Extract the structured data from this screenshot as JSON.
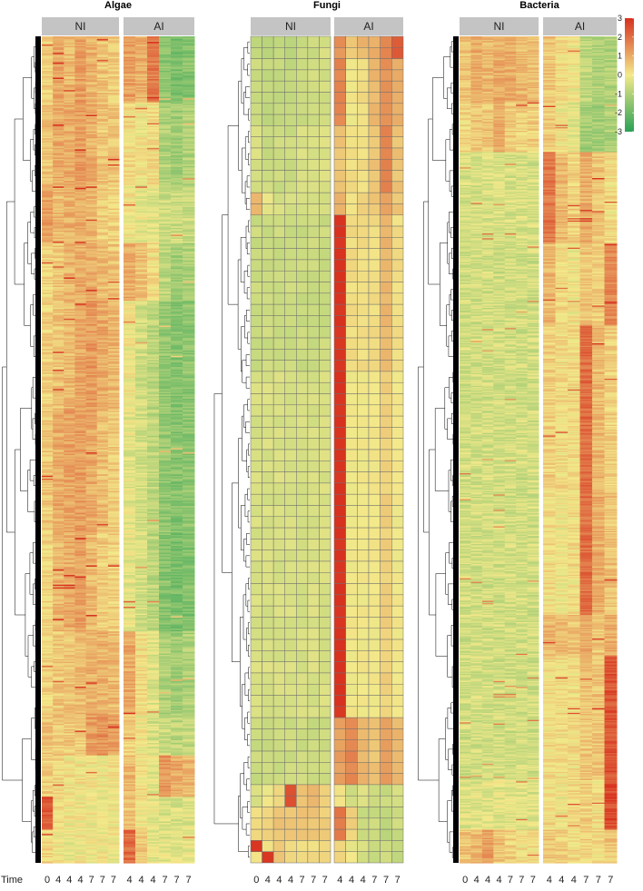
{
  "chart_data": {
    "type": "heatmap",
    "x_axis_label": "Time",
    "color_scale": {
      "min": -3,
      "max": 3,
      "ticks": [
        3,
        2,
        1,
        0,
        -1,
        -2,
        -3
      ],
      "colors": {
        "low": "#2aa155",
        "mid": "#f3e98a",
        "high": "#d7311f"
      }
    },
    "column_groups": [
      "NI",
      "AI"
    ],
    "column_times": {
      "NI": [
        "0",
        "4",
        "4",
        "4",
        "7",
        "7",
        "7"
      ],
      "AI": [
        "4",
        "4",
        "4",
        "7",
        "7",
        "7"
      ]
    },
    "panels": [
      {
        "title": "Algae",
        "dense": true,
        "rows": 600,
        "profile": [
          [
            0.0,
            [
              0.4,
              1.0,
              0.8,
              1.2,
              0.9,
              0.6,
              0.5
            ],
            [
              1.2,
              0.9,
              1.8,
              -1.5,
              -1.8,
              -1.6
            ]
          ],
          [
            0.08,
            [
              0.6,
              1.0,
              1.0,
              1.2,
              0.9,
              0.6,
              0.6
            ],
            [
              0.2,
              0.0,
              0.2,
              -1.0,
              -1.2,
              -1.0
            ]
          ],
          [
            0.18,
            [
              1.2,
              0.8,
              0.9,
              1.0,
              0.8,
              0.5,
              0.4
            ],
            [
              0.0,
              -0.2,
              -0.3,
              -0.6,
              -0.6,
              -0.6
            ]
          ],
          [
            0.25,
            [
              0.3,
              0.6,
              0.8,
              1.0,
              1.0,
              0.7,
              0.6
            ],
            [
              1.0,
              0.6,
              0.2,
              -0.8,
              -1.2,
              -1.0
            ]
          ],
          [
            0.32,
            [
              0.4,
              0.6,
              0.8,
              1.1,
              1.3,
              1.0,
              0.8
            ],
            [
              0.0,
              -0.5,
              -0.8,
              -1.4,
              -1.6,
              -1.5
            ]
          ],
          [
            0.45,
            [
              0.5,
              1.0,
              1.1,
              1.2,
              1.0,
              0.7,
              0.5
            ],
            [
              -0.2,
              -0.5,
              -0.8,
              -1.4,
              -1.6,
              -1.5
            ]
          ],
          [
            0.6,
            [
              0.3,
              0.8,
              1.0,
              1.2,
              0.8,
              0.5,
              0.4
            ],
            [
              -0.2,
              -0.5,
              -0.8,
              -1.6,
              -1.8,
              -1.7
            ]
          ],
          [
            0.72,
            [
              0.3,
              0.5,
              0.6,
              0.7,
              0.9,
              0.9,
              0.8
            ],
            [
              1.0,
              0.2,
              -0.3,
              -1.0,
              -1.2,
              -1.0
            ]
          ],
          [
            0.82,
            [
              0.6,
              0.5,
              0.5,
              0.5,
              1.2,
              1.4,
              1.2
            ],
            [
              0.4,
              0.0,
              -0.4,
              -0.6,
              -0.8,
              -0.7
            ]
          ],
          [
            0.87,
            [
              0.4,
              0.2,
              0.1,
              0.1,
              0.1,
              0.0,
              0.1
            ],
            [
              0.8,
              0.2,
              -0.2,
              1.4,
              1.0,
              0.8
            ]
          ],
          [
            0.92,
            [
              2.4,
              0.1,
              0.0,
              0.0,
              0.0,
              -0.1,
              0.0
            ],
            [
              0.6,
              0.0,
              -0.2,
              -0.4,
              -0.4,
              -0.3
            ]
          ],
          [
            0.96,
            [
              0.3,
              0.0,
              -0.1,
              0.0,
              -0.1,
              0.0,
              0.0
            ],
            [
              2.0,
              0.6,
              -0.2,
              -0.3,
              -0.3,
              -0.2
            ]
          ]
        ]
      },
      {
        "title": "Fungi",
        "dense": false,
        "rows": 74,
        "profile": [
          [
            0.0,
            [
              -0.8,
              -0.8,
              -0.8,
              -0.8,
              -0.6,
              -0.6,
              -0.4
            ],
            [
              1.4,
              0.6,
              0.8,
              1.0,
              1.6,
              2.4
            ]
          ],
          [
            0.02,
            [
              -0.6,
              -0.7,
              -0.7,
              -0.7,
              -0.6,
              -0.5,
              -0.5
            ],
            [
              1.6,
              0.0,
              0.2,
              0.8,
              1.4,
              1.0
            ]
          ],
          [
            0.1,
            [
              -0.4,
              -0.6,
              -0.6,
              -0.6,
              -0.4,
              -0.4,
              -0.4
            ],
            [
              0.6,
              0.2,
              0.2,
              0.6,
              1.6,
              0.6
            ]
          ],
          [
            0.18,
            [
              0.8,
              -0.2,
              -0.4,
              -0.4,
              -0.4,
              -0.4,
              -0.4
            ],
            [
              0.8,
              0.2,
              0.4,
              0.6,
              1.2,
              0.6
            ]
          ],
          [
            0.21,
            [
              -0.6,
              -0.6,
              -0.6,
              -0.6,
              -0.6,
              -0.6,
              -0.6
            ],
            [
              3.0,
              0.2,
              0.2,
              0.2,
              0.8,
              0.2
            ]
          ],
          [
            0.4,
            [
              -0.4,
              -0.4,
              -0.4,
              -0.4,
              -0.4,
              -0.4,
              -0.4
            ],
            [
              3.0,
              0.0,
              0.0,
              0.0,
              0.4,
              0.0
            ]
          ],
          [
            0.82,
            [
              -0.6,
              -0.6,
              -0.6,
              -0.6,
              -0.6,
              -0.6,
              -0.6
            ],
            [
              1.2,
              1.6,
              0.8,
              0.6,
              1.2,
              0.8
            ]
          ],
          [
            0.9,
            [
              -0.4,
              0.0,
              0.2,
              2.6,
              0.6,
              0.8,
              0.4
            ],
            [
              0.2,
              -0.6,
              -0.4,
              -0.6,
              -0.6,
              -0.4
            ]
          ],
          [
            0.93,
            [
              0.2,
              0.4,
              0.6,
              0.6,
              0.6,
              0.6,
              0.4
            ],
            [
              1.8,
              0.4,
              -0.6,
              -0.6,
              -0.8,
              -0.6
            ]
          ],
          [
            0.96,
            [
              2.8,
              0.2,
              0.4,
              0.2,
              0.2,
              0.2,
              0.2
            ],
            [
              0.4,
              -0.2,
              -0.4,
              -0.6,
              -0.6,
              -0.6
            ]
          ],
          [
            0.98,
            [
              0.2,
              2.8,
              0.6,
              0.4,
              0.2,
              0.2,
              0.2
            ],
            [
              0.4,
              0.0,
              -0.4,
              -0.6,
              -0.6,
              -0.8
            ]
          ]
        ]
      },
      {
        "title": "Bacteria",
        "dense": true,
        "rows": 700,
        "profile": [
          [
            0.0,
            [
              0.6,
              1.0,
              0.8,
              1.0,
              1.0,
              0.8,
              0.7
            ],
            [
              0.6,
              0.2,
              0.0,
              -0.8,
              -1.0,
              -1.0
            ]
          ],
          [
            0.08,
            [
              0.3,
              0.6,
              0.6,
              1.0,
              0.5,
              0.4,
              0.4
            ],
            [
              0.5,
              0.0,
              -0.2,
              -1.2,
              -1.2,
              -1.0
            ]
          ],
          [
            0.14,
            [
              -0.4,
              -0.4,
              -0.4,
              -0.4,
              -0.4,
              -0.4,
              -0.4
            ],
            [
              1.8,
              0.8,
              0.4,
              1.0,
              0.6,
              0.2
            ]
          ],
          [
            0.25,
            [
              -0.5,
              -0.5,
              -0.5,
              -0.5,
              -0.5,
              -0.5,
              -0.5
            ],
            [
              0.8,
              0.2,
              0.0,
              0.6,
              0.4,
              1.6
            ]
          ],
          [
            0.35,
            [
              -0.5,
              -0.5,
              -0.5,
              -0.5,
              -0.5,
              -0.5,
              -0.5
            ],
            [
              0.4,
              0.2,
              0.2,
              2.0,
              0.8,
              0.4
            ]
          ],
          [
            0.55,
            [
              -0.5,
              -0.5,
              -0.5,
              -0.5,
              -0.5,
              -0.5,
              -0.5
            ],
            [
              0.2,
              0.0,
              0.2,
              2.0,
              1.0,
              0.6
            ]
          ],
          [
            0.7,
            [
              -0.5,
              -0.5,
              -0.5,
              -0.5,
              -0.5,
              -0.5,
              -0.5
            ],
            [
              0.8,
              0.8,
              0.6,
              1.0,
              0.6,
              1.0
            ]
          ],
          [
            0.75,
            [
              -0.5,
              -0.5,
              -0.5,
              -0.5,
              -0.5,
              -0.5,
              -0.5
            ],
            [
              0.2,
              0.2,
              0.2,
              0.6,
              0.6,
              2.4
            ]
          ],
          [
            0.9,
            [
              -0.3,
              -0.3,
              -0.3,
              -0.3,
              -0.3,
              -0.3,
              -0.3
            ],
            [
              0.2,
              0.0,
              0.2,
              0.4,
              0.2,
              2.6
            ]
          ],
          [
            0.96,
            [
              0.6,
              0.8,
              1.2,
              0.6,
              0.4,
              0.2,
              0.2
            ],
            [
              0.6,
              0.4,
              0.2,
              0.4,
              0.2,
              0.6
            ]
          ]
        ]
      }
    ]
  }
}
